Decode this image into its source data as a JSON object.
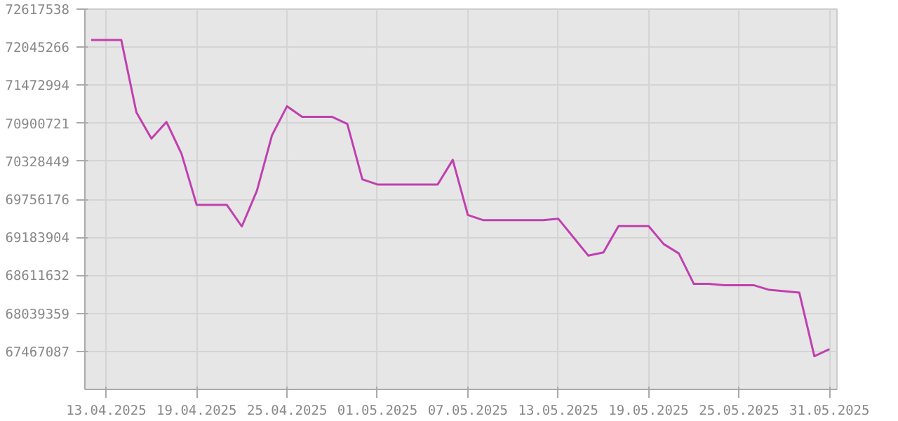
{
  "chart_data": {
    "type": "line",
    "x": [
      "2025-04-12",
      "2025-04-13",
      "2025-04-14",
      "2025-04-15",
      "2025-04-16",
      "2025-04-17",
      "2025-04-18",
      "2025-04-19",
      "2025-04-20",
      "2025-04-21",
      "2025-04-22",
      "2025-04-23",
      "2025-04-24",
      "2025-04-25",
      "2025-04-26",
      "2025-04-27",
      "2025-04-28",
      "2025-04-29",
      "2025-04-30",
      "2025-05-01",
      "2025-05-02",
      "2025-05-03",
      "2025-05-04",
      "2025-05-05",
      "2025-05-06",
      "2025-05-07",
      "2025-05-08",
      "2025-05-09",
      "2025-05-10",
      "2025-05-11",
      "2025-05-12",
      "2025-05-13",
      "2025-05-14",
      "2025-05-15",
      "2025-05-16",
      "2025-05-17",
      "2025-05-18",
      "2025-05-19",
      "2025-05-20",
      "2025-05-21",
      "2025-05-22",
      "2025-05-23",
      "2025-05-24",
      "2025-05-25",
      "2025-05-26",
      "2025-05-27",
      "2025-05-28",
      "2025-05-29",
      "2025-05-30",
      "2025-05-31"
    ],
    "series": [
      {
        "color": "#c040b0",
        "values": [
          72152000,
          72152000,
          72152000,
          71066000,
          70669000,
          70920000,
          70439000,
          69673000,
          69673000,
          69673000,
          69347000,
          69884000,
          70718000,
          71156000,
          70996000,
          70996000,
          70996000,
          70891000,
          70056000,
          69979000,
          69979000,
          69979000,
          69979000,
          69979000,
          70349000,
          69520000,
          69443000,
          69443000,
          69443000,
          69443000,
          69443000,
          69464000,
          69186000,
          68908000,
          68956000,
          69353000,
          69353000,
          69353000,
          69082000,
          68942000,
          68483000,
          68483000,
          68462000,
          68462000,
          68462000,
          68393000,
          68372000,
          68351000,
          67396000,
          67500000
        ]
      }
    ],
    "xlim": [
      "2025-04-11T14:00",
      "2025-05-31T12:00"
    ],
    "xticks": [
      {
        "value": "2025-04-13",
        "label": "13.04.2025"
      },
      {
        "value": "2025-04-19",
        "label": "19.04.2025"
      },
      {
        "value": "2025-04-25",
        "label": "25.04.2025"
      },
      {
        "value": "2025-05-01",
        "label": "01.05.2025"
      },
      {
        "value": "2025-05-07",
        "label": "07.05.2025"
      },
      {
        "value": "2025-05-13",
        "label": "13.05.2025"
      },
      {
        "value": "2025-05-19",
        "label": "19.05.2025"
      },
      {
        "value": "2025-05-25",
        "label": "25.05.2025"
      },
      {
        "value": "2025-05-31",
        "label": "31.05.2025"
      }
    ],
    "ylim": [
      66894815,
      72617538
    ],
    "yticks": [
      67467087,
      68039359,
      68611632,
      69183904,
      69756176,
      70328449,
      70900721,
      71472994,
      72045266,
      72617538
    ],
    "grid": true,
    "marker": "none",
    "line_style": "solid"
  }
}
